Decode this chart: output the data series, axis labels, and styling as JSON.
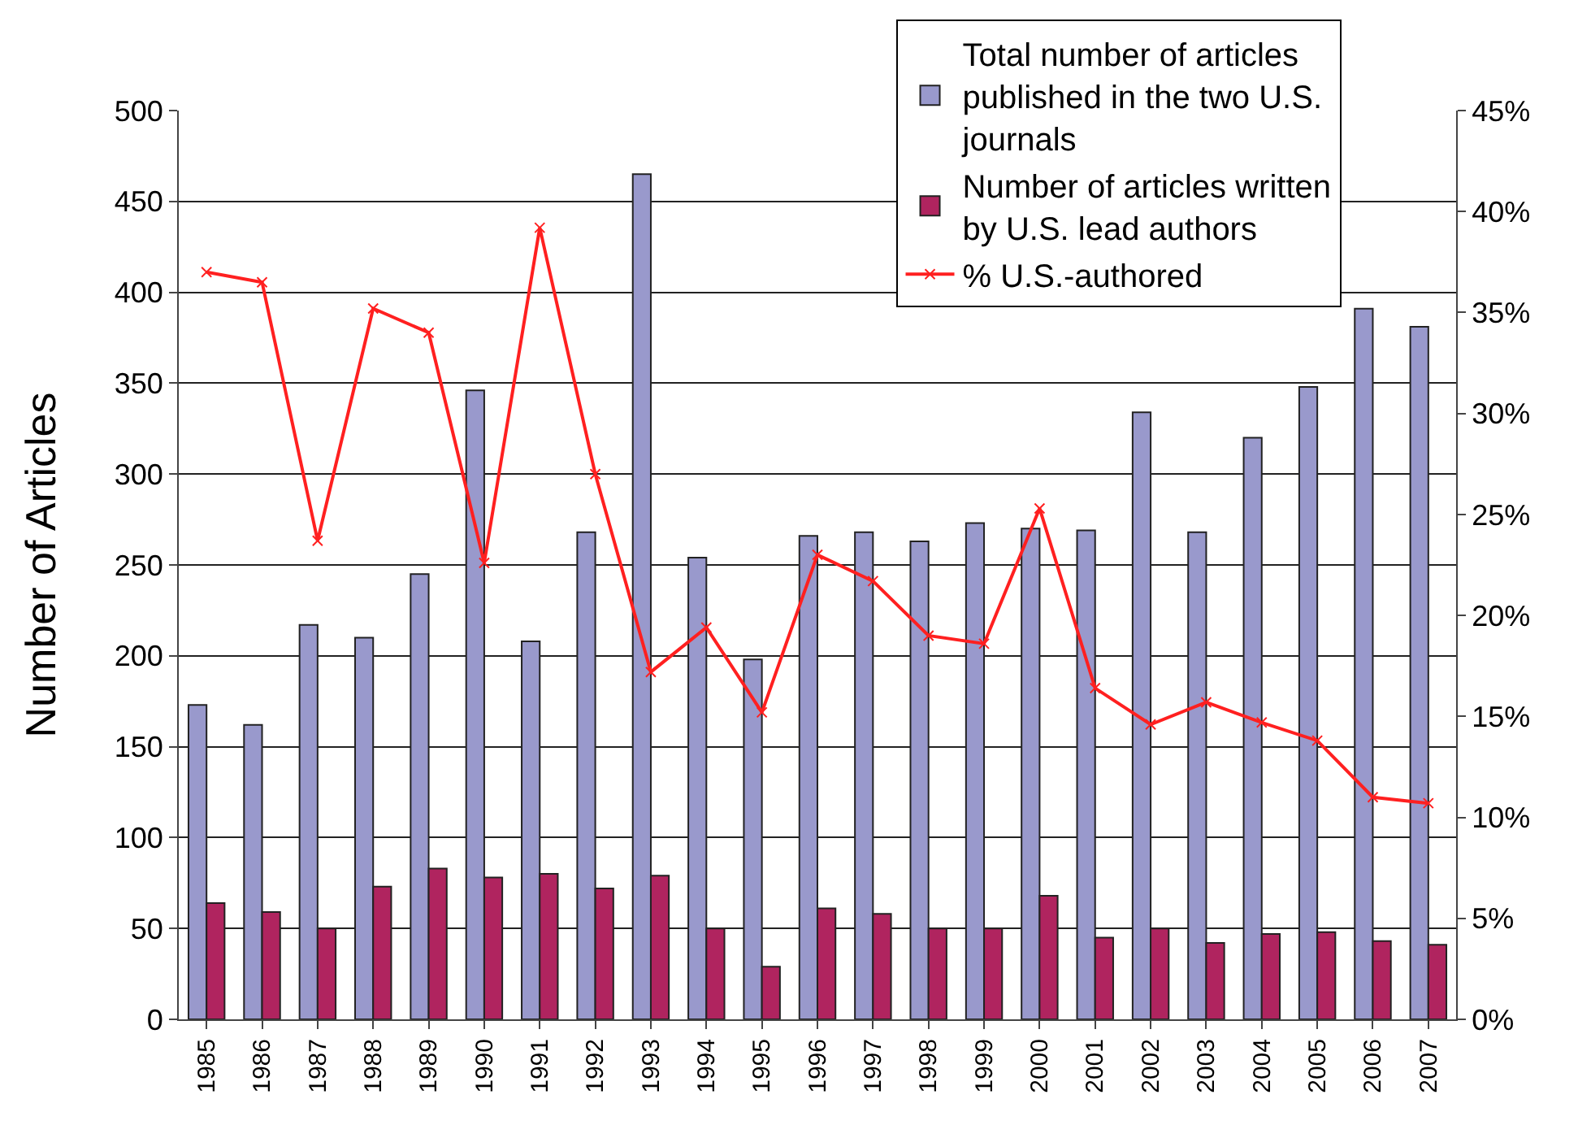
{
  "chart_data": {
    "type": "bar",
    "ylabel": "Number of Articles",
    "categories": [
      "1985",
      "1986",
      "1987",
      "1988",
      "1989",
      "1990",
      "1991",
      "1992",
      "1993",
      "1994",
      "1995",
      "1996",
      "1997",
      "1998",
      "1999",
      "2000",
      "2001",
      "2002",
      "2003",
      "2004",
      "2005",
      "2006",
      "2007"
    ],
    "series": [
      {
        "name": "Total number of articles published in the two U.S. journals",
        "color": "#9999cc",
        "values": [
          173,
          162,
          217,
          210,
          245,
          346,
          208,
          268,
          465,
          254,
          198,
          266,
          268,
          263,
          273,
          270,
          269,
          334,
          268,
          320,
          348,
          391,
          381
        ]
      },
      {
        "name": "Number of articles written by U.S. lead authors",
        "color": "#b0245f",
        "values": [
          64,
          59,
          50,
          73,
          83,
          78,
          80,
          72,
          79,
          50,
          29,
          61,
          58,
          50,
          50,
          68,
          45,
          50,
          42,
          47,
          48,
          43,
          41
        ]
      },
      {
        "name": "% U.S.-authored",
        "type": "line",
        "axis": "y2",
        "color": "#ff2020",
        "marker": "cross",
        "values": [
          37,
          36.5,
          23.7,
          35.2,
          34,
          22.6,
          39.2,
          27,
          17.2,
          19.4,
          15.2,
          23,
          21.7,
          19,
          18.6,
          25.3,
          16.4,
          14.6,
          15.7,
          14.7,
          13.8,
          11,
          10.7
        ]
      }
    ],
    "ylim": [
      0,
      500
    ],
    "yticks": [
      0,
      50,
      100,
      150,
      200,
      250,
      300,
      350,
      400,
      450,
      500
    ],
    "y2lim": [
      0,
      45
    ],
    "y2ticks": [
      {
        "value": 0,
        "label": "0%"
      },
      {
        "value": 5,
        "label": "5%"
      },
      {
        "value": 10,
        "label": "10%"
      },
      {
        "value": 15,
        "label": "15%"
      },
      {
        "value": 20,
        "label": "20%"
      },
      {
        "value": 25,
        "label": "25%"
      },
      {
        "value": 30,
        "label": "30%"
      },
      {
        "value": 35,
        "label": "35%"
      },
      {
        "value": 40,
        "label": "40%"
      },
      {
        "value": 45,
        "label": "45%"
      }
    ],
    "grid": "y",
    "legend": "top right"
  }
}
